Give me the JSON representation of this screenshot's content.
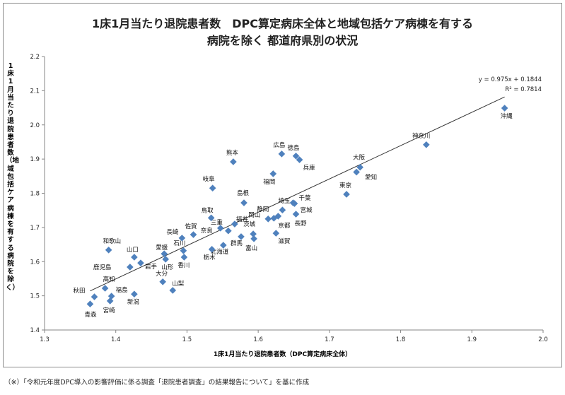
{
  "chart_data": {
    "type": "scatter",
    "title_line1": "1床1月当たり退院患者数　DPC算定病床全体と地域包括ケア病棟を有する",
    "title_line2": "病院を除く 都道府県別の状況",
    "xlabel": "1床1月当たり退院患者数（DPC算定病床全体）",
    "ylabel": "1床1月当たり退院患者数（地域包括ケア病棟を有する病院を除く）",
    "xlim": [
      1.3,
      2.0
    ],
    "ylim": [
      1.4,
      2.2
    ],
    "xticks": [
      "1.3",
      "1.4",
      "1.5",
      "1.6",
      "1.7",
      "1.8",
      "1.9",
      "2.0"
    ],
    "yticks": [
      "1.4",
      "1.5",
      "1.6",
      "1.7",
      "1.8",
      "1.9",
      "2.0",
      "2.1",
      "2.2"
    ],
    "grid": false,
    "marker_color": "#4f81bd",
    "trendline": {
      "slope": 0.975,
      "intercept": 0.1844,
      "x_range": [
        1.364,
        1.946
      ],
      "equation": "y = 0.975x + 0.1844",
      "r2": "R² = 0.7814"
    },
    "points": [
      {
        "name": "北海道",
        "x": 1.551,
        "y": 1.648
      },
      {
        "name": "青森",
        "x": 1.364,
        "y": 1.476
      },
      {
        "name": "岩手",
        "x": 1.435,
        "y": 1.596
      },
      {
        "name": "宮城",
        "x": 1.651,
        "y": 1.77
      },
      {
        "name": "秋田",
        "x": 1.37,
        "y": 1.497
      },
      {
        "name": "山形",
        "x": 1.47,
        "y": 1.607
      },
      {
        "name": "福島",
        "x": 1.394,
        "y": 1.499
      },
      {
        "name": "茨城",
        "x": 1.593,
        "y": 1.681
      },
      {
        "name": "栃木",
        "x": 1.535,
        "y": 1.636
      },
      {
        "name": "群馬",
        "x": 1.576,
        "y": 1.673
      },
      {
        "name": "埼玉",
        "x": 1.634,
        "y": 1.751
      },
      {
        "name": "千葉",
        "x": 1.649,
        "y": 1.772
      },
      {
        "name": "東京",
        "x": 1.724,
        "y": 1.797
      },
      {
        "name": "神奈川",
        "x": 1.836,
        "y": 1.942
      },
      {
        "name": "新潟",
        "x": 1.426,
        "y": 1.505
      },
      {
        "name": "富山",
        "x": 1.594,
        "y": 1.667
      },
      {
        "name": "石川",
        "x": 1.495,
        "y": 1.632
      },
      {
        "name": "福井",
        "x": 1.567,
        "y": 1.71
      },
      {
        "name": "山梨",
        "x": 1.48,
        "y": 1.516
      },
      {
        "name": "長野",
        "x": 1.653,
        "y": 1.739
      },
      {
        "name": "岐阜",
        "x": 1.536,
        "y": 1.815
      },
      {
        "name": "静岡",
        "x": 1.622,
        "y": 1.727
      },
      {
        "name": "愛知",
        "x": 1.738,
        "y": 1.862
      },
      {
        "name": "三重",
        "x": 1.558,
        "y": 1.69
      },
      {
        "name": "滋賀",
        "x": 1.625,
        "y": 1.683
      },
      {
        "name": "京都",
        "x": 1.628,
        "y": 1.733
      },
      {
        "name": "大阪",
        "x": 1.743,
        "y": 1.876
      },
      {
        "name": "兵庫",
        "x": 1.658,
        "y": 1.898
      },
      {
        "name": "奈良",
        "x": 1.547,
        "y": 1.698
      },
      {
        "name": "和歌山",
        "x": 1.39,
        "y": 1.634
      },
      {
        "name": "鳥取",
        "x": 1.534,
        "y": 1.728
      },
      {
        "name": "島根",
        "x": 1.58,
        "y": 1.772
      },
      {
        "name": "岡山",
        "x": 1.614,
        "y": 1.725
      },
      {
        "name": "広島",
        "x": 1.633,
        "y": 1.915
      },
      {
        "name": "山口",
        "x": 1.426,
        "y": 1.613
      },
      {
        "name": "徳島",
        "x": 1.653,
        "y": 1.909
      },
      {
        "name": "香川",
        "x": 1.496,
        "y": 1.613
      },
      {
        "name": "愛媛",
        "x": 1.468,
        "y": 1.623
      },
      {
        "name": "高知",
        "x": 1.385,
        "y": 1.522
      },
      {
        "name": "福岡",
        "x": 1.621,
        "y": 1.857
      },
      {
        "name": "佐賀",
        "x": 1.509,
        "y": 1.679
      },
      {
        "name": "長崎",
        "x": 1.493,
        "y": 1.669
      },
      {
        "name": "熊本",
        "x": 1.565,
        "y": 1.892
      },
      {
        "name": "大分",
        "x": 1.466,
        "y": 1.541
      },
      {
        "name": "宮崎",
        "x": 1.392,
        "y": 1.485
      },
      {
        "name": "鹿児島",
        "x": 1.42,
        "y": 1.584
      },
      {
        "name": "沖縄",
        "x": 1.946,
        "y": 2.049
      }
    ]
  },
  "footnote": "（※）「令和元年度DPC導入の影響評価に係る調査「退院患者調査」の結果報告について」を基に作成"
}
